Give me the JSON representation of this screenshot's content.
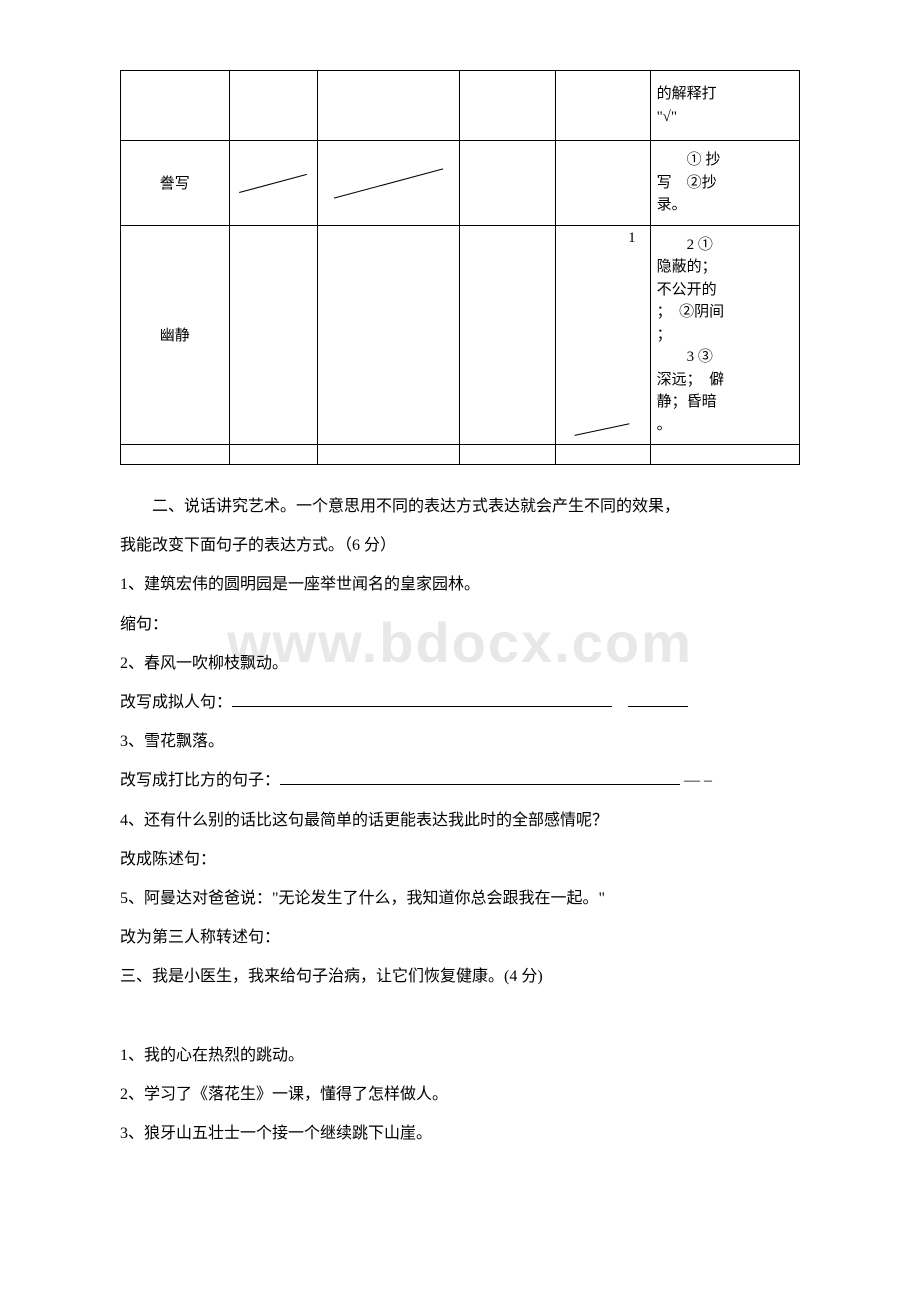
{
  "watermark": "www.bdocx.com",
  "table": {
    "row0": {
      "c5_line2": "的解释打",
      "c5_line3": "\"√\""
    },
    "row1": {
      "c0": "誊写",
      "c5_line1": "　　① 抄",
      "c5_line2": "写　②抄",
      "c5_line3": "录。"
    },
    "row2": {
      "c0": "幽静",
      "c4_num": "1",
      "c5_line1": "　　2 ①",
      "c5_line2": "隐蔽的；",
      "c5_line3": "不公开的",
      "c5_line4": "；　②阴间",
      "c5_line5": "；",
      "c5_line6": "　　3 ③",
      "c5_line7": "深远；　僻",
      "c5_line8": "静；昏暗",
      "c5_line9": "。"
    }
  },
  "sections": {
    "s2_intro1": "二、说话讲究艺术。一个意思用不同的表达方式表达就会产生不同的效果，",
    "s2_intro2": "我能改变下面句子的表达方式。（6 分）",
    "q1": "1、建筑宏伟的圆明园是一座举世闻名的皇家园林。",
    "q1_label": "缩句：",
    "q2": "2、春风一吹柳枝飘动。",
    "q2_label": "改写成拟人句：",
    "q3": "3、雪花飘落。",
    "q3_label": "改写成打比方的句子：",
    "q4": "4、还有什么别的话比这句最简单的话更能表达我此时的全部感情呢？",
    "q4_label": "改成陈述句：",
    "q5": "5、阿曼达对爸爸说：\"无论发生了什么，我知道你总会跟我在一起。\"",
    "q5_label": "改为第三人称转述句：",
    "s3_intro": "三、我是小医生，我来给句子治病，让它们恢复健康。(4 分)",
    "s3_q1": "1、我的心在热烈的跳动。",
    "s3_q2": "2、学习了《落花生》一课，懂得了怎样做人。",
    "s3_q3": "3、狼牙山五壮士一个接一个继续跳下山崖。"
  }
}
